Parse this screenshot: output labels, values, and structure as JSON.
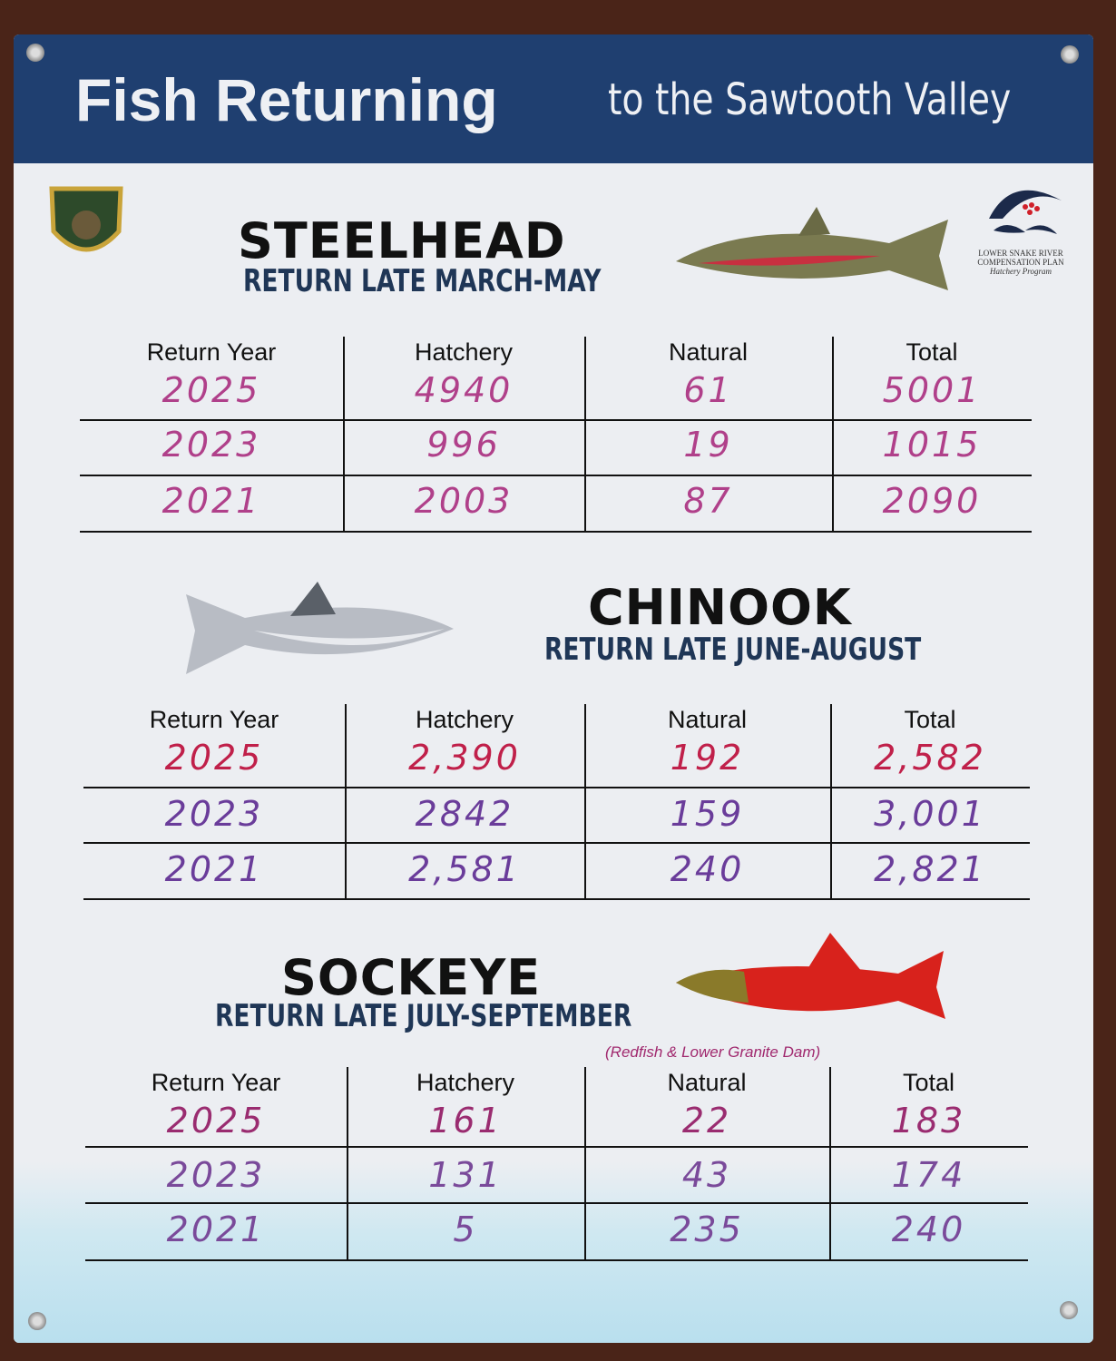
{
  "header": {
    "title_bold": "Fish Returning",
    "title_rest": "to the Sawtooth Valley"
  },
  "logos": {
    "left": "Idaho Fish & Game",
    "right_line1": "LOWER SNAKE RIVER",
    "right_line2": "COMPENSATION PLAN",
    "right_line3": "Hatchery Program"
  },
  "columns": [
    "Return Year",
    "Hatchery",
    "Natural",
    "Total"
  ],
  "ink_colors": {
    "steelhead": "#b0408a",
    "chinook_2025": "#c0204a",
    "chinook": "#6a3c9a",
    "sockeye": "#9a2c70"
  },
  "sections": [
    {
      "name": "STEELHEAD",
      "season": "RETURN LATE MARCH-MAY",
      "rows": [
        [
          "2025",
          "4940",
          "61",
          "5001"
        ],
        [
          "2023",
          "996",
          "19",
          "1015"
        ],
        [
          "2021",
          "2003",
          "87",
          "2090"
        ]
      ]
    },
    {
      "name": "CHINOOK",
      "season": "RETURN LATE JUNE-AUGUST",
      "rows": [
        [
          "2025",
          "2,390",
          "192",
          "2,582"
        ],
        [
          "2023",
          "2842",
          "159",
          "3,001"
        ],
        [
          "2021",
          "2,581",
          "240",
          "2,821"
        ]
      ]
    },
    {
      "name": "SOCKEYE",
      "season": "RETURN LATE JULY-SEPTEMBER",
      "note": "(Redfish & Lower Granite Dam)",
      "rows": [
        [
          "2025",
          "161",
          "22",
          "183"
        ],
        [
          "2023",
          "131",
          "43",
          "174"
        ],
        [
          "2021",
          "5",
          "235",
          "240"
        ]
      ]
    }
  ]
}
